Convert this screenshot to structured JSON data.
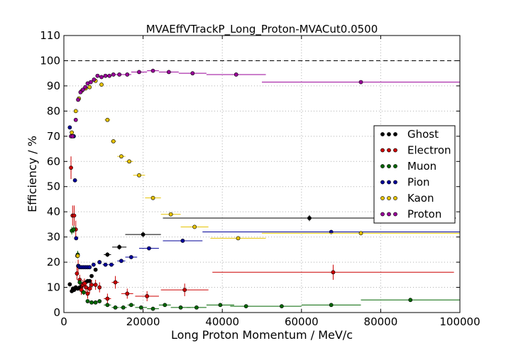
{
  "chart_data": {
    "type": "scatter",
    "title": "MVAEffVTrackP_Long_Proton-MVACut0.0500",
    "xlabel": "Long Proton Momentum / MeV/c",
    "ylabel": "Efficiency / %",
    "xlim": [
      0,
      100000
    ],
    "ylim": [
      0,
      110
    ],
    "xticks": [
      0,
      20000,
      40000,
      60000,
      80000,
      100000
    ],
    "yticks": [
      0,
      10,
      20,
      30,
      40,
      50,
      60,
      70,
      80,
      90,
      100,
      110
    ],
    "xtick_labels": [
      "0",
      "20000",
      "40000",
      "60000",
      "80000",
      "100000"
    ],
    "ytick_labels": [
      "0",
      "10",
      "20",
      "30",
      "40",
      "50",
      "60",
      "70",
      "80",
      "90",
      "100",
      "110"
    ],
    "reference_line_y": 100,
    "grid": true,
    "legend_position": "right",
    "series": [
      {
        "name": "Ghost",
        "color": "#000000",
        "points": [
          {
            "x": 1500,
            "y": 11.2,
            "xerr": 0,
            "yerr": 0.6
          },
          {
            "x": 2000,
            "y": 8.5,
            "xerr": 0,
            "yerr": 0.5
          },
          {
            "x": 2300,
            "y": 9.5,
            "xerr": 0,
            "yerr": 0.5
          },
          {
            "x": 2600,
            "y": 9.0,
            "xerr": 0,
            "yerr": 0.5
          },
          {
            "x": 3000,
            "y": 10.0,
            "xerr": 0,
            "yerr": 0.5
          },
          {
            "x": 3500,
            "y": 9.5,
            "xerr": 0,
            "yerr": 0.5
          },
          {
            "x": 4000,
            "y": 10.0,
            "xerr": 0,
            "yerr": 0.5
          },
          {
            "x": 4500,
            "y": 10.5,
            "xerr": 0,
            "yerr": 0.5
          },
          {
            "x": 5000,
            "y": 11.5,
            "xerr": 0,
            "yerr": 0.5
          },
          {
            "x": 5500,
            "y": 12.0,
            "xerr": 0,
            "yerr": 0.5
          },
          {
            "x": 6000,
            "y": 12.5,
            "xerr": 0,
            "yerr": 0.5
          },
          {
            "x": 6500,
            "y": 12.5,
            "xerr": 0,
            "yerr": 0.5
          },
          {
            "x": 7000,
            "y": 14.5,
            "xerr": 0,
            "yerr": 0.6
          },
          {
            "x": 8000,
            "y": 17.0,
            "xerr": 400,
            "yerr": 0.7
          },
          {
            "x": 9000,
            "y": 20.0,
            "xerr": 400,
            "yerr": 0.8
          },
          {
            "x": 11000,
            "y": 23.0,
            "xerr": 900,
            "yerr": 0.9
          },
          {
            "x": 14000,
            "y": 26.0,
            "xerr": 1800,
            "yerr": 1.0
          },
          {
            "x": 20000,
            "y": 31.0,
            "xerr": 4500,
            "yerr": 1.0
          },
          {
            "x": 62000,
            "y": 37.5,
            "xerr": 37000,
            "yerr": 1.2
          }
        ]
      },
      {
        "name": "Electron",
        "color": "#cc0000",
        "points": [
          {
            "x": 1800,
            "y": 57.5,
            "xerr": 0,
            "yerr": 4.5
          },
          {
            "x": 2200,
            "y": 38.5,
            "xerr": 0,
            "yerr": 4.0
          },
          {
            "x": 2600,
            "y": 38.5,
            "xerr": 0,
            "yerr": 4.0
          },
          {
            "x": 3000,
            "y": 33.0,
            "xerr": 0,
            "yerr": 3.5
          },
          {
            "x": 3300,
            "y": 15.5,
            "xerr": 0,
            "yerr": 2.5
          },
          {
            "x": 3600,
            "y": 18.5,
            "xerr": 0,
            "yerr": 2.5
          },
          {
            "x": 4000,
            "y": 13.0,
            "xerr": 0,
            "yerr": 2.0
          },
          {
            "x": 4400,
            "y": 9.0,
            "xerr": 0,
            "yerr": 2.0
          },
          {
            "x": 4800,
            "y": 11.0,
            "xerr": 0,
            "yerr": 2.0
          },
          {
            "x": 5200,
            "y": 11.5,
            "xerr": 0,
            "yerr": 2.0
          },
          {
            "x": 5600,
            "y": 10.0,
            "xerr": 0,
            "yerr": 2.0
          },
          {
            "x": 6000,
            "y": 7.5,
            "xerr": 0,
            "yerr": 2.0
          },
          {
            "x": 6500,
            "y": 9.5,
            "xerr": 0,
            "yerr": 2.0
          },
          {
            "x": 7000,
            "y": 11.0,
            "xerr": 0,
            "yerr": 2.0
          },
          {
            "x": 8000,
            "y": 11.0,
            "xerr": 400,
            "yerr": 2.0
          },
          {
            "x": 9000,
            "y": 10.0,
            "xerr": 400,
            "yerr": 2.0
          },
          {
            "x": 11000,
            "y": 5.5,
            "xerr": 900,
            "yerr": 2.0
          },
          {
            "x": 13000,
            "y": 12.0,
            "xerr": 900,
            "yerr": 2.5
          },
          {
            "x": 16000,
            "y": 7.5,
            "xerr": 1500,
            "yerr": 2.0
          },
          {
            "x": 21000,
            "y": 6.5,
            "xerr": 3000,
            "yerr": 2.0
          },
          {
            "x": 30500,
            "y": 9.0,
            "xerr": 6000,
            "yerr": 2.5
          },
          {
            "x": 68000,
            "y": 16.0,
            "xerr": 30500,
            "yerr": 3.0
          }
        ]
      },
      {
        "name": "Muon",
        "color": "#006600",
        "points": [
          {
            "x": 2000,
            "y": 32.5,
            "xerr": 0,
            "yerr": 1.5
          },
          {
            "x": 2500,
            "y": 33.0,
            "xerr": 0,
            "yerr": 1.5
          },
          {
            "x": 3500,
            "y": 23.0,
            "xerr": 0,
            "yerr": 1.5
          },
          {
            "x": 4000,
            "y": 12.0,
            "xerr": 0,
            "yerr": 1.0
          },
          {
            "x": 5000,
            "y": 8.0,
            "xerr": 0,
            "yerr": 1.0
          },
          {
            "x": 6000,
            "y": 4.5,
            "xerr": 0,
            "yerr": 0.5
          },
          {
            "x": 7000,
            "y": 4.0,
            "xerr": 0,
            "yerr": 0.5
          },
          {
            "x": 8000,
            "y": 4.0,
            "xerr": 400,
            "yerr": 0.5
          },
          {
            "x": 9000,
            "y": 4.5,
            "xerr": 400,
            "yerr": 0.5
          },
          {
            "x": 11000,
            "y": 3.0,
            "xerr": 900,
            "yerr": 0.5
          },
          {
            "x": 13000,
            "y": 2.0,
            "xerr": 900,
            "yerr": 0.5
          },
          {
            "x": 15000,
            "y": 2.0,
            "xerr": 900,
            "yerr": 0.5
          },
          {
            "x": 17000,
            "y": 3.0,
            "xerr": 900,
            "yerr": 0.5
          },
          {
            "x": 19500,
            "y": 2.0,
            "xerr": 1500,
            "yerr": 0.5
          },
          {
            "x": 22500,
            "y": 1.5,
            "xerr": 1500,
            "yerr": 0.5
          },
          {
            "x": 25500,
            "y": 3.0,
            "xerr": 1500,
            "yerr": 0.5
          },
          {
            "x": 29500,
            "y": 2.0,
            "xerr": 2500,
            "yerr": 0.5
          },
          {
            "x": 33500,
            "y": 2.0,
            "xerr": 2500,
            "yerr": 0.5
          },
          {
            "x": 39500,
            "y": 3.0,
            "xerr": 3500,
            "yerr": 0.5
          },
          {
            "x": 46000,
            "y": 2.5,
            "xerr": 4000,
            "yerr": 0.5
          },
          {
            "x": 55000,
            "y": 2.5,
            "xerr": 5000,
            "yerr": 0.5
          },
          {
            "x": 67500,
            "y": 3.0,
            "xerr": 7500,
            "yerr": 0.5
          },
          {
            "x": 87500,
            "y": 5.0,
            "xerr": 12500,
            "yerr": 0.8
          }
        ]
      },
      {
        "name": "Pion",
        "color": "#000099",
        "points": [
          {
            "x": 1500,
            "y": 73.5,
            "xerr": 0,
            "yerr": 0.5
          },
          {
            "x": 2000,
            "y": 70.0,
            "xerr": 0,
            "yerr": 0.5
          },
          {
            "x": 2500,
            "y": 70.0,
            "xerr": 0,
            "yerr": 0.5
          },
          {
            "x": 2800,
            "y": 52.5,
            "xerr": 0,
            "yerr": 0.5
          },
          {
            "x": 3100,
            "y": 29.5,
            "xerr": 0,
            "yerr": 0.5
          },
          {
            "x": 3400,
            "y": 22.5,
            "xerr": 0,
            "yerr": 0.5
          },
          {
            "x": 3700,
            "y": 18.5,
            "xerr": 0,
            "yerr": 0.5
          },
          {
            "x": 4000,
            "y": 18.0,
            "xerr": 0,
            "yerr": 0.5
          },
          {
            "x": 4500,
            "y": 18.0,
            "xerr": 0,
            "yerr": 0.5
          },
          {
            "x": 5000,
            "y": 18.0,
            "xerr": 0,
            "yerr": 0.5
          },
          {
            "x": 5500,
            "y": 18.0,
            "xerr": 0,
            "yerr": 0.5
          },
          {
            "x": 6000,
            "y": 18.0,
            "xerr": 0,
            "yerr": 0.5
          },
          {
            "x": 6500,
            "y": 18.0,
            "xerr": 0,
            "yerr": 0.5
          },
          {
            "x": 7500,
            "y": 19.0,
            "xerr": 500,
            "yerr": 0.5
          },
          {
            "x": 9000,
            "y": 20.0,
            "xerr": 500,
            "yerr": 0.5
          },
          {
            "x": 10500,
            "y": 19.0,
            "xerr": 700,
            "yerr": 0.5
          },
          {
            "x": 12000,
            "y": 19.0,
            "xerr": 700,
            "yerr": 0.5
          },
          {
            "x": 14500,
            "y": 20.5,
            "xerr": 1000,
            "yerr": 0.5
          },
          {
            "x": 17000,
            "y": 22.0,
            "xerr": 1500,
            "yerr": 0.5
          },
          {
            "x": 21500,
            "y": 25.5,
            "xerr": 2500,
            "yerr": 0.5
          },
          {
            "x": 30000,
            "y": 28.5,
            "xerr": 5000,
            "yerr": 0.5
          },
          {
            "x": 67500,
            "y": 32.0,
            "xerr": 32500,
            "yerr": 0.5
          }
        ]
      },
      {
        "name": "Kaon",
        "color": "#e6c200",
        "points": [
          {
            "x": 2000,
            "y": 71.5,
            "xerr": 0,
            "yerr": 0.5
          },
          {
            "x": 3000,
            "y": 80.0,
            "xerr": 0,
            "yerr": 0.5
          },
          {
            "x": 3500,
            "y": 22.5,
            "xerr": 0,
            "yerr": 0.5
          },
          {
            "x": 3800,
            "y": 85.0,
            "xerr": 0,
            "yerr": 0.5
          },
          {
            "x": 4500,
            "y": 88.0,
            "xerr": 0,
            "yerr": 0.5
          },
          {
            "x": 5500,
            "y": 89.0,
            "xerr": 0,
            "yerr": 0.5
          },
          {
            "x": 6500,
            "y": 89.5,
            "xerr": 0,
            "yerr": 0.5
          },
          {
            "x": 8000,
            "y": 92.0,
            "xerr": 500,
            "yerr": 0.5
          },
          {
            "x": 9500,
            "y": 90.5,
            "xerr": 500,
            "yerr": 0.5
          },
          {
            "x": 11000,
            "y": 76.5,
            "xerr": 700,
            "yerr": 0.5
          },
          {
            "x": 12500,
            "y": 68.0,
            "xerr": 700,
            "yerr": 0.5
          },
          {
            "x": 14500,
            "y": 62.0,
            "xerr": 1000,
            "yerr": 0.5
          },
          {
            "x": 16500,
            "y": 60.0,
            "xerr": 1000,
            "yerr": 0.5
          },
          {
            "x": 19000,
            "y": 54.5,
            "xerr": 1500,
            "yerr": 0.5
          },
          {
            "x": 22500,
            "y": 45.5,
            "xerr": 2000,
            "yerr": 0.5
          },
          {
            "x": 27000,
            "y": 39.0,
            "xerr": 2500,
            "yerr": 0.5
          },
          {
            "x": 33000,
            "y": 34.0,
            "xerr": 3500,
            "yerr": 0.5
          },
          {
            "x": 44000,
            "y": 29.5,
            "xerr": 7000,
            "yerr": 0.5
          },
          {
            "x": 75000,
            "y": 31.5,
            "xerr": 25000,
            "yerr": 0.5
          }
        ]
      },
      {
        "name": "Proton",
        "color": "#990099",
        "points": [
          {
            "x": 1800,
            "y": 70.0,
            "xerr": 0,
            "yerr": 0.5
          },
          {
            "x": 2200,
            "y": 70.0,
            "xerr": 0,
            "yerr": 0.5
          },
          {
            "x": 3000,
            "y": 76.5,
            "xerr": 0,
            "yerr": 0.5
          },
          {
            "x": 3600,
            "y": 84.5,
            "xerr": 0,
            "yerr": 0.5
          },
          {
            "x": 4200,
            "y": 87.5,
            "xerr": 0,
            "yerr": 0.5
          },
          {
            "x": 4800,
            "y": 88.5,
            "xerr": 0,
            "yerr": 0.5
          },
          {
            "x": 5400,
            "y": 89.5,
            "xerr": 0,
            "yerr": 0.5
          },
          {
            "x": 6000,
            "y": 91.0,
            "xerr": 0,
            "yerr": 0.5
          },
          {
            "x": 6800,
            "y": 91.5,
            "xerr": 0,
            "yerr": 0.5
          },
          {
            "x": 7600,
            "y": 92.5,
            "xerr": 0,
            "yerr": 0.5
          },
          {
            "x": 8500,
            "y": 94.0,
            "xerr": 500,
            "yerr": 0.5
          },
          {
            "x": 9500,
            "y": 93.5,
            "xerr": 500,
            "yerr": 0.5
          },
          {
            "x": 10500,
            "y": 94.0,
            "xerr": 500,
            "yerr": 0.5
          },
          {
            "x": 11500,
            "y": 94.0,
            "xerr": 500,
            "yerr": 0.5
          },
          {
            "x": 12500,
            "y": 94.5,
            "xerr": 500,
            "yerr": 0.5
          },
          {
            "x": 14000,
            "y": 94.5,
            "xerr": 1000,
            "yerr": 0.5
          },
          {
            "x": 16000,
            "y": 94.5,
            "xerr": 1000,
            "yerr": 0.5
          },
          {
            "x": 19000,
            "y": 95.5,
            "xerr": 2000,
            "yerr": 0.5
          },
          {
            "x": 22500,
            "y": 96.0,
            "xerr": 1500,
            "yerr": 0.5
          },
          {
            "x": 26500,
            "y": 95.5,
            "xerr": 2500,
            "yerr": 0.5
          },
          {
            "x": 32500,
            "y": 95.0,
            "xerr": 3500,
            "yerr": 0.5
          },
          {
            "x": 43500,
            "y": 94.5,
            "xerr": 7500,
            "yerr": 0.5
          },
          {
            "x": 75000,
            "y": 91.5,
            "xerr": 25000,
            "yerr": 0.5
          }
        ]
      }
    ]
  }
}
